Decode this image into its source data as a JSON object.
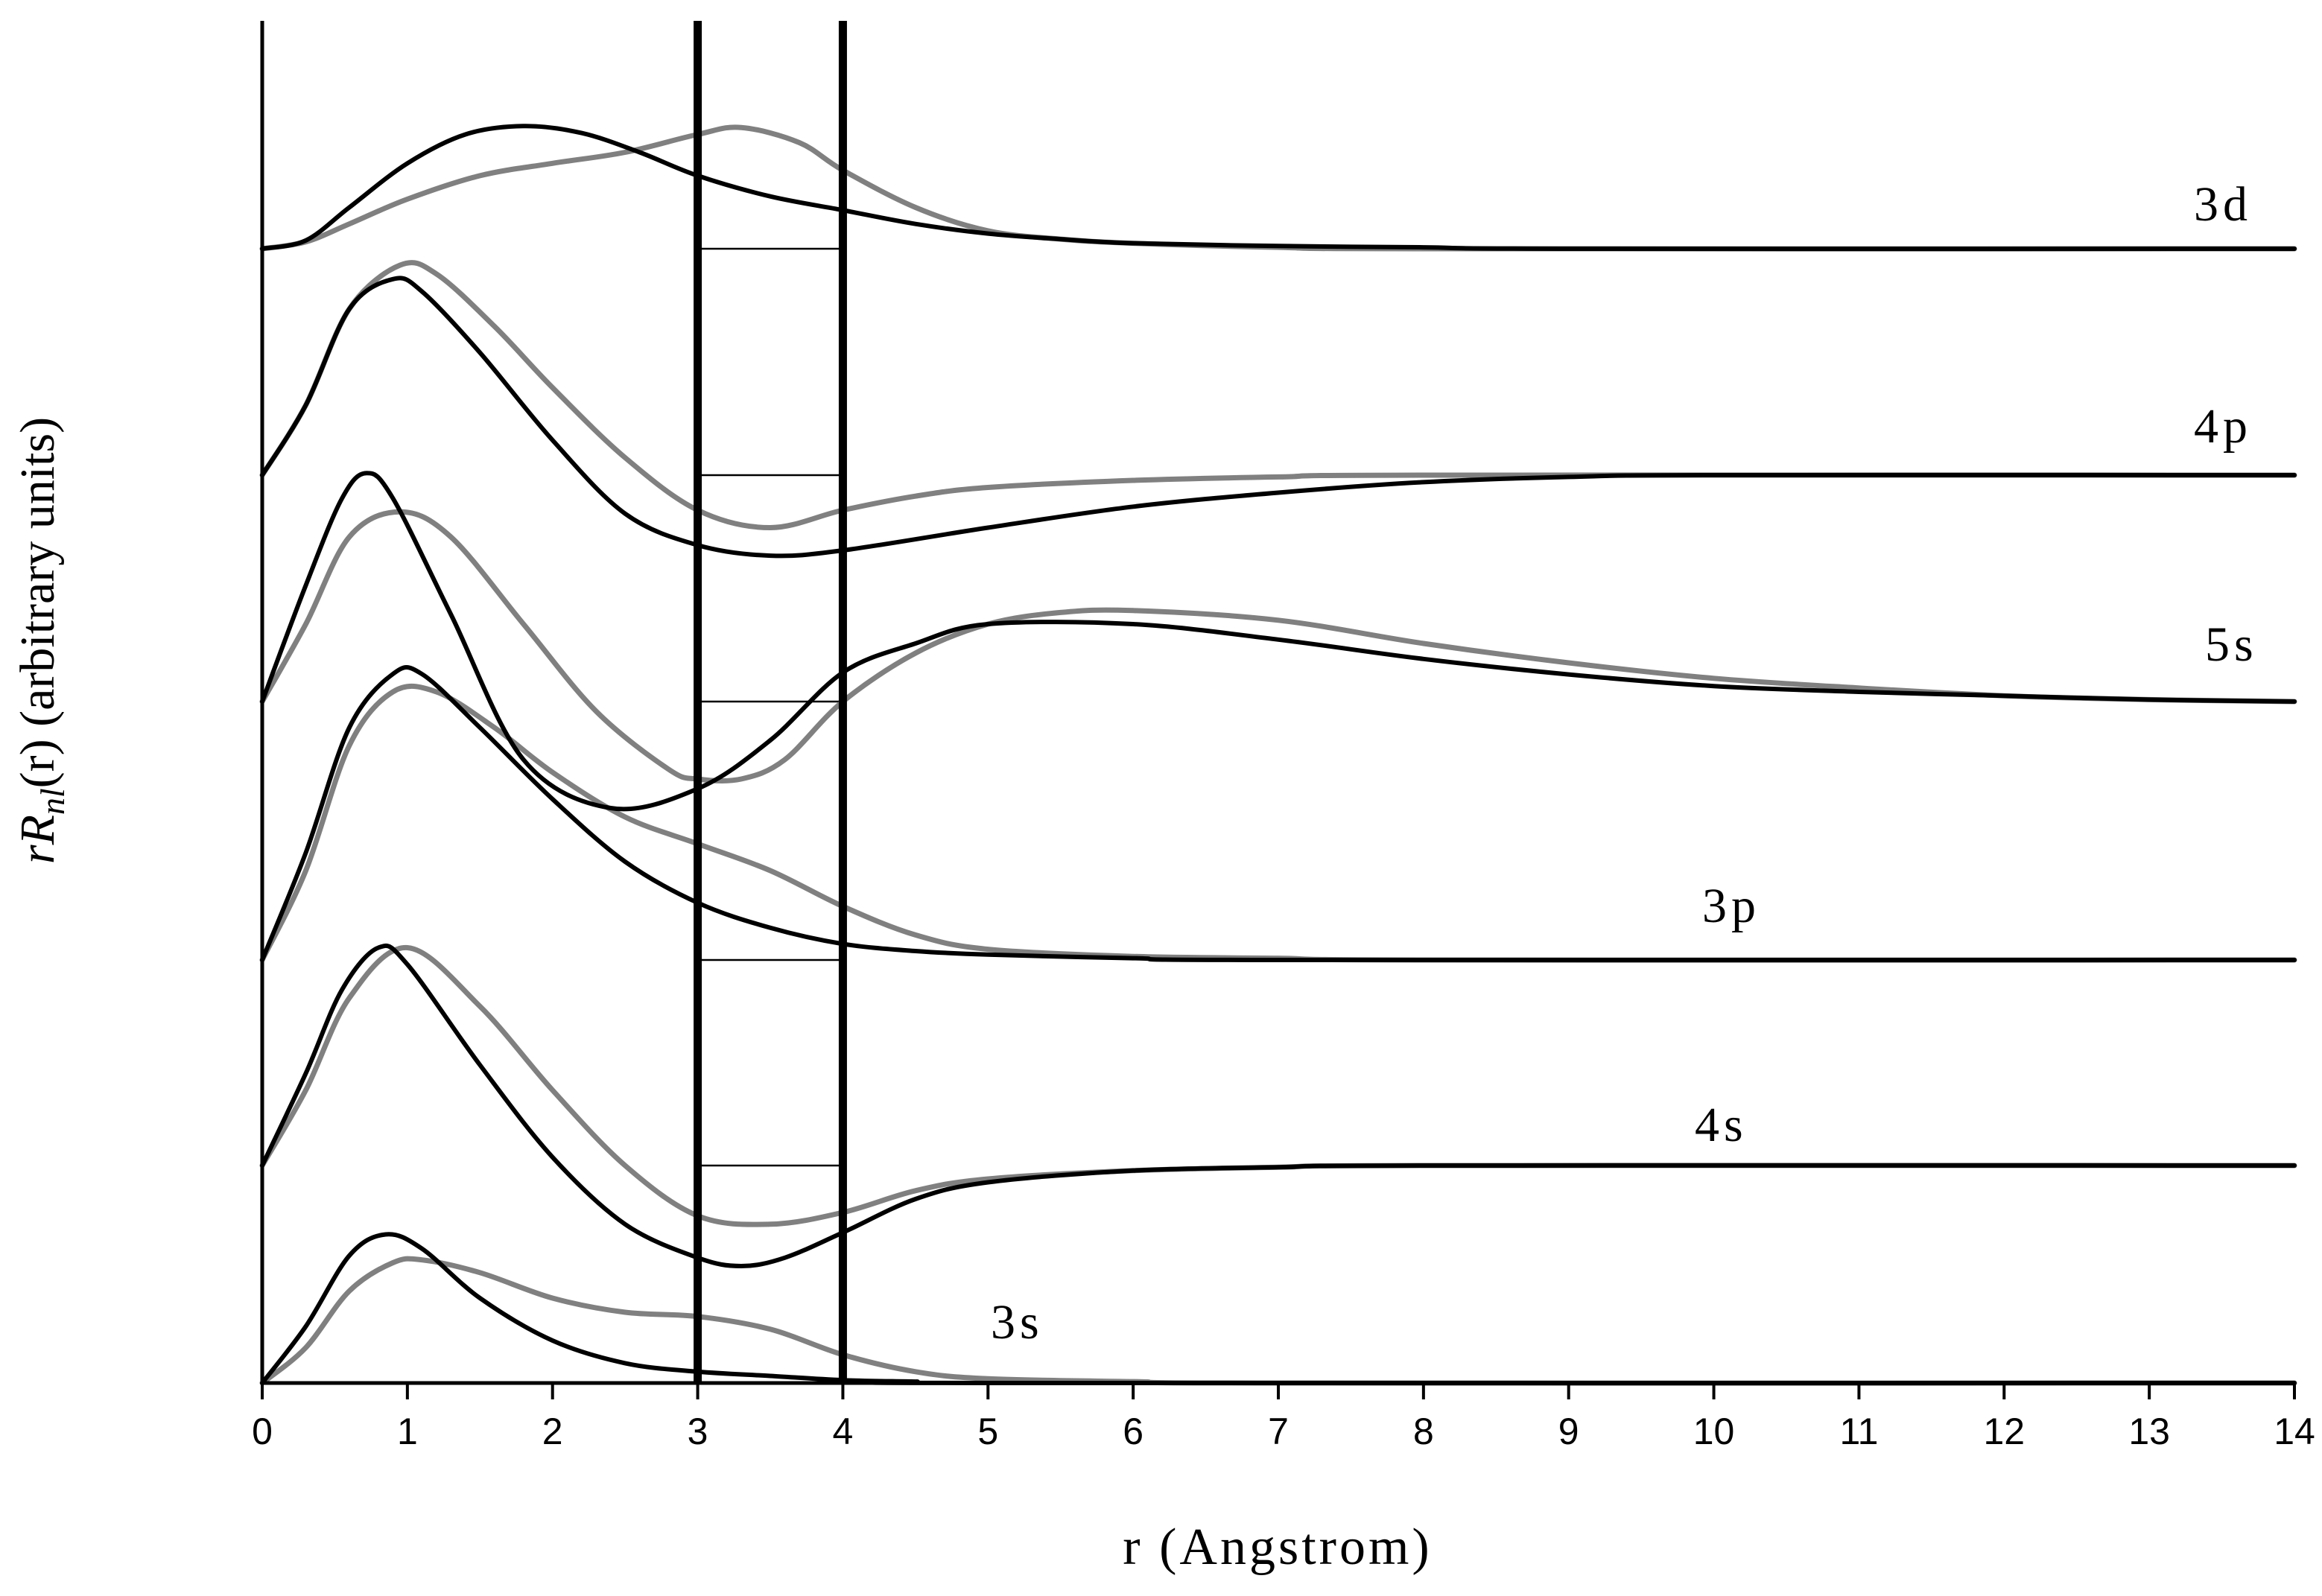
{
  "chart_data": {
    "type": "line",
    "xlabel": "r (Angstrom)",
    "ylabel": {
      "prefix": "rR",
      "subscript": "nl",
      "suffix": "(r) (arbitrary units)"
    },
    "xlim": [
      0,
      14
    ],
    "x_ticks": [
      "0",
      "1",
      "2",
      "3",
      "4",
      "5",
      "6",
      "7",
      "8",
      "9",
      "10",
      "11",
      "12",
      "13",
      "14"
    ],
    "vertical_markers": [
      3.0,
      4.0
    ],
    "grid": false,
    "colors": {
      "series_a": "#000000",
      "series_b": "#808080"
    },
    "orbitals": [
      {
        "label": "3s",
        "baseline": 0.0,
        "black": [
          [
            0,
            0
          ],
          [
            0.3,
            0.4
          ],
          [
            0.6,
            0.9
          ],
          [
            0.85,
            1.05
          ],
          [
            1.1,
            0.95
          ],
          [
            1.5,
            0.6
          ],
          [
            2.0,
            0.3
          ],
          [
            2.5,
            0.14
          ],
          [
            3.0,
            0.08
          ],
          [
            3.5,
            0.05
          ],
          [
            4.0,
            0.02
          ],
          [
            4.5,
            0.01
          ],
          [
            5,
            0
          ],
          [
            14,
            0
          ]
        ],
        "gray": [
          [
            0,
            0
          ],
          [
            0.3,
            0.25
          ],
          [
            0.6,
            0.65
          ],
          [
            0.9,
            0.85
          ],
          [
            1.1,
            0.87
          ],
          [
            1.5,
            0.78
          ],
          [
            2.0,
            0.6
          ],
          [
            2.5,
            0.5
          ],
          [
            3.0,
            0.47
          ],
          [
            3.5,
            0.38
          ],
          [
            4.0,
            0.2
          ],
          [
            4.5,
            0.08
          ],
          [
            5,
            0.03
          ],
          [
            6,
            0.01
          ],
          [
            7,
            0
          ],
          [
            14,
            0
          ]
        ]
      },
      {
        "label": "4s",
        "baseline": 0.0,
        "black": [
          [
            0,
            0
          ],
          [
            0.3,
            0.55
          ],
          [
            0.55,
            1.05
          ],
          [
            0.8,
            1.3
          ],
          [
            1.0,
            1.2
          ],
          [
            1.5,
            0.6
          ],
          [
            2.0,
            0.05
          ],
          [
            2.5,
            -0.35
          ],
          [
            3.0,
            -0.55
          ],
          [
            3.3,
            -0.6
          ],
          [
            3.6,
            -0.55
          ],
          [
            4.0,
            -0.4
          ],
          [
            4.5,
            -0.2
          ],
          [
            5,
            -0.1
          ],
          [
            6,
            -0.03
          ],
          [
            7,
            -0.01
          ],
          [
            8,
            0
          ],
          [
            14,
            0
          ]
        ],
        "gray": [
          [
            0,
            0
          ],
          [
            0.3,
            0.45
          ],
          [
            0.6,
            1.0
          ],
          [
            1.0,
            1.3
          ],
          [
            1.5,
            0.95
          ],
          [
            2.0,
            0.45
          ],
          [
            2.5,
            0.0
          ],
          [
            3.0,
            -0.3
          ],
          [
            3.5,
            -0.35
          ],
          [
            4.0,
            -0.28
          ],
          [
            4.5,
            -0.15
          ],
          [
            5,
            -0.08
          ],
          [
            6,
            -0.03
          ],
          [
            7,
            -0.01
          ],
          [
            8,
            0
          ],
          [
            14,
            0
          ]
        ]
      },
      {
        "label": "3p",
        "baseline": 0.0,
        "black": [
          [
            0,
            0
          ],
          [
            0.3,
            0.6
          ],
          [
            0.6,
            1.3
          ],
          [
            0.9,
            1.6
          ],
          [
            1.1,
            1.6
          ],
          [
            1.5,
            1.3
          ],
          [
            2.0,
            0.9
          ],
          [
            2.5,
            0.55
          ],
          [
            3.0,
            0.32
          ],
          [
            3.5,
            0.18
          ],
          [
            4.0,
            0.09
          ],
          [
            4.5,
            0.05
          ],
          [
            5,
            0.03
          ],
          [
            6,
            0.01
          ],
          [
            7,
            0
          ],
          [
            14,
            0
          ]
        ],
        "gray": [
          [
            0,
            0
          ],
          [
            0.3,
            0.5
          ],
          [
            0.6,
            1.2
          ],
          [
            0.9,
            1.5
          ],
          [
            1.2,
            1.5
          ],
          [
            1.6,
            1.3
          ],
          [
            2.0,
            1.05
          ],
          [
            2.5,
            0.8
          ],
          [
            3.0,
            0.65
          ],
          [
            3.5,
            0.5
          ],
          [
            4.0,
            0.3
          ],
          [
            4.5,
            0.14
          ],
          [
            5,
            0.06
          ],
          [
            6,
            0.02
          ],
          [
            7,
            0.01
          ],
          [
            8,
            0
          ],
          [
            14,
            0
          ]
        ]
      },
      {
        "label": "5s",
        "baseline": 0.0,
        "black": [
          [
            0,
            0
          ],
          [
            0.3,
            0.6
          ],
          [
            0.55,
            1.05
          ],
          [
            0.72,
            1.18
          ],
          [
            0.9,
            1.05
          ],
          [
            1.3,
            0.45
          ],
          [
            1.8,
            -0.3
          ],
          [
            2.4,
            -0.55
          ],
          [
            3.0,
            -0.45
          ],
          [
            3.5,
            -0.2
          ],
          [
            4.0,
            0.15
          ],
          [
            4.5,
            0.3
          ],
          [
            5.0,
            0.4
          ],
          [
            6.0,
            0.4
          ],
          [
            7.0,
            0.32
          ],
          [
            8.0,
            0.22
          ],
          [
            9.0,
            0.14
          ],
          [
            10.0,
            0.08
          ],
          [
            11.0,
            0.05
          ],
          [
            12.0,
            0.03
          ],
          [
            13.0,
            0.01
          ],
          [
            14.0,
            0
          ]
        ],
        "gray": [
          [
            0,
            0
          ],
          [
            0.3,
            0.4
          ],
          [
            0.6,
            0.85
          ],
          [
            0.95,
            0.98
          ],
          [
            1.3,
            0.85
          ],
          [
            1.8,
            0.4
          ],
          [
            2.3,
            -0.05
          ],
          [
            2.8,
            -0.35
          ],
          [
            3.0,
            -0.4
          ],
          [
            3.3,
            -0.4
          ],
          [
            3.6,
            -0.3
          ],
          [
            4.0,
            -0.0
          ],
          [
            4.5,
            0.25
          ],
          [
            5.0,
            0.4
          ],
          [
            5.5,
            0.46
          ],
          [
            6.0,
            0.47
          ],
          [
            7.0,
            0.42
          ],
          [
            8.0,
            0.3
          ],
          [
            9.0,
            0.2
          ],
          [
            10.0,
            0.12
          ],
          [
            11.0,
            0.07
          ],
          [
            12.0,
            0.03
          ],
          [
            13.0,
            0.01
          ],
          [
            14.0,
            0
          ]
        ]
      },
      {
        "label": "4p",
        "baseline": 0.0,
        "black": [
          [
            0,
            0
          ],
          [
            0.3,
            0.4
          ],
          [
            0.6,
            0.95
          ],
          [
            0.9,
            1.12
          ],
          [
            1.1,
            1.05
          ],
          [
            1.5,
            0.7
          ],
          [
            2.0,
            0.2
          ],
          [
            2.5,
            -0.22
          ],
          [
            3.0,
            -0.4
          ],
          [
            3.5,
            -0.46
          ],
          [
            4.0,
            -0.43
          ],
          [
            5.0,
            -0.3
          ],
          [
            6.0,
            -0.18
          ],
          [
            7.0,
            -0.1
          ],
          [
            8.0,
            -0.04
          ],
          [
            9.0,
            -0.01
          ],
          [
            10.0,
            0
          ],
          [
            14,
            0
          ]
        ],
        "gray": [
          [
            0,
            0
          ],
          [
            0.3,
            0.4
          ],
          [
            0.6,
            0.95
          ],
          [
            0.95,
            1.2
          ],
          [
            1.2,
            1.15
          ],
          [
            1.6,
            0.85
          ],
          [
            2.0,
            0.5
          ],
          [
            2.5,
            0.1
          ],
          [
            3.0,
            -0.2
          ],
          [
            3.5,
            -0.3
          ],
          [
            4.0,
            -0.2
          ],
          [
            4.5,
            -0.12
          ],
          [
            5.0,
            -0.07
          ],
          [
            6.0,
            -0.03
          ],
          [
            7.0,
            -0.01
          ],
          [
            8.0,
            0
          ],
          [
            14,
            0
          ]
        ]
      },
      {
        "label": "3d",
        "baseline": 0.0,
        "black": [
          [
            0,
            0
          ],
          [
            0.3,
            0.06
          ],
          [
            0.6,
            0.3
          ],
          [
            1.0,
            0.62
          ],
          [
            1.4,
            0.83
          ],
          [
            1.8,
            0.89
          ],
          [
            2.2,
            0.84
          ],
          [
            2.6,
            0.7
          ],
          [
            3.0,
            0.53
          ],
          [
            3.5,
            0.38
          ],
          [
            4.0,
            0.28
          ],
          [
            4.5,
            0.18
          ],
          [
            5.0,
            0.11
          ],
          [
            5.5,
            0.07
          ],
          [
            6.0,
            0.04
          ],
          [
            7.0,
            0.02
          ],
          [
            8.0,
            0.01
          ],
          [
            9.0,
            0
          ],
          [
            14,
            0
          ]
        ],
        "gray": [
          [
            0,
            0
          ],
          [
            0.3,
            0.05
          ],
          [
            0.6,
            0.18
          ],
          [
            1.0,
            0.36
          ],
          [
            1.5,
            0.53
          ],
          [
            2.0,
            0.62
          ],
          [
            2.5,
            0.7
          ],
          [
            3.0,
            0.83
          ],
          [
            3.3,
            0.88
          ],
          [
            3.7,
            0.77
          ],
          [
            4.0,
            0.57
          ],
          [
            4.5,
            0.3
          ],
          [
            5.0,
            0.13
          ],
          [
            5.5,
            0.07
          ],
          [
            6.0,
            0.04
          ],
          [
            7.0,
            0.01
          ],
          [
            8.0,
            0
          ],
          [
            14,
            0
          ]
        ]
      }
    ]
  }
}
